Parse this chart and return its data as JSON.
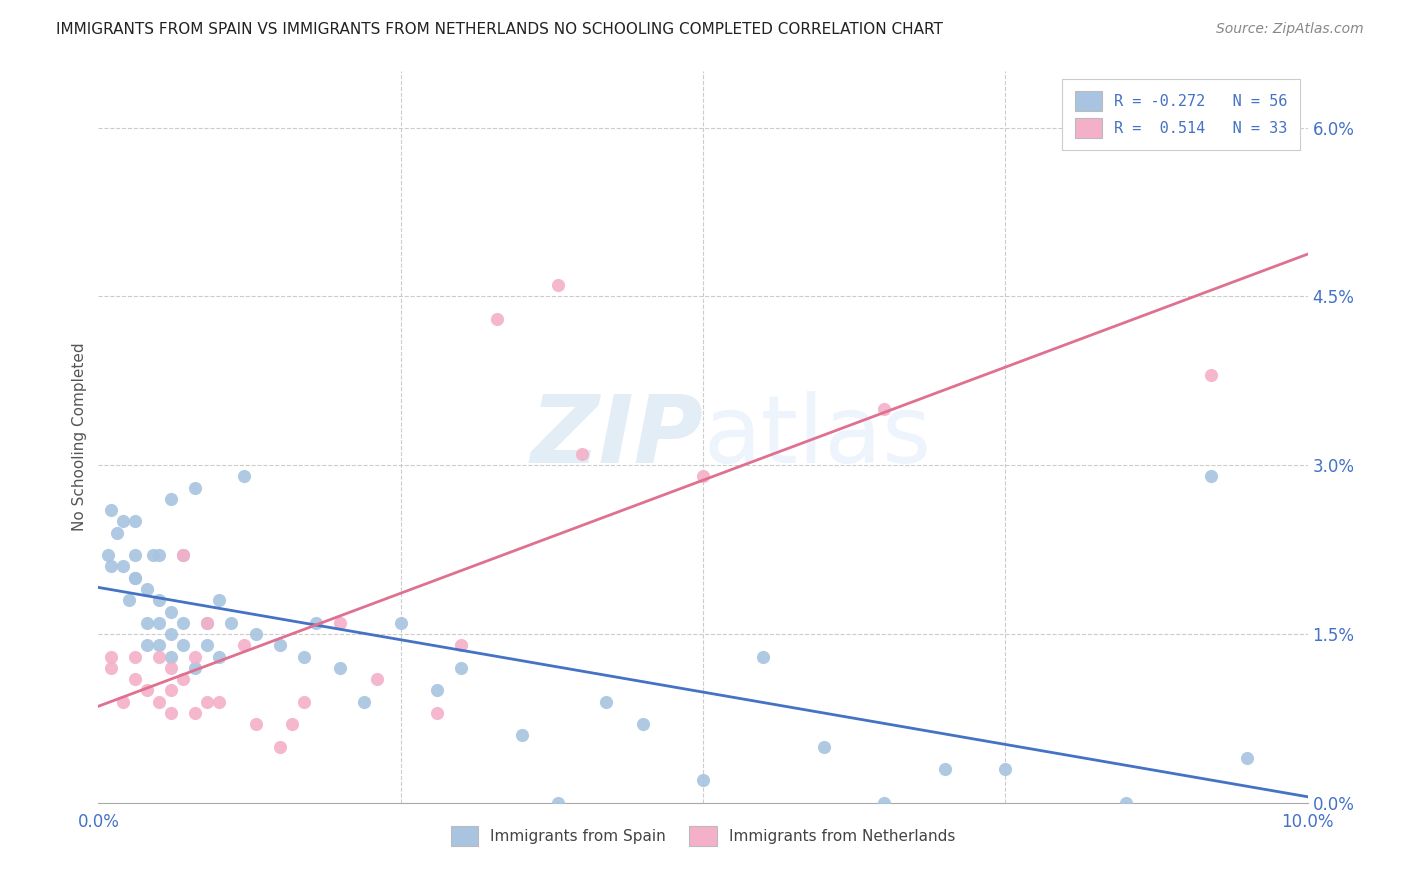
{
  "title": "IMMIGRANTS FROM SPAIN VS IMMIGRANTS FROM NETHERLANDS NO SCHOOLING COMPLETED CORRELATION CHART",
  "source": "Source: ZipAtlas.com",
  "ylabel": "No Schooling Completed",
  "right_yticks_labels": [
    "0.0%",
    "1.5%",
    "3.0%",
    "4.5%",
    "6.0%"
  ],
  "right_ytick_vals": [
    0.0,
    0.015,
    0.03,
    0.045,
    0.06
  ],
  "xlim": [
    0.0,
    0.1
  ],
  "ylim": [
    0.0,
    0.065
  ],
  "x_tick_labels": [
    "0.0%",
    "10.0%"
  ],
  "x_tick_vals": [
    0.0,
    0.1
  ],
  "legend_r1": "R = -0.272",
  "legend_n1": "N = 56",
  "legend_r2": "R =  0.514",
  "legend_n2": "N = 33",
  "legend_color1": "#a8c4e0",
  "legend_color2": "#f4b0c8",
  "scatter_color_spain": "#a8c4e0",
  "scatter_color_netherlands": "#f4b0c8",
  "line_color_spain": "#4472c4",
  "line_color_netherlands": "#e07090",
  "watermark_zip": "ZIP",
  "watermark_atlas": "atlas",
  "bottom_legend1": "Immigrants from Spain",
  "bottom_legend2": "Immigrants from Netherlands",
  "spain_x": [
    0.0008,
    0.001,
    0.001,
    0.0015,
    0.002,
    0.002,
    0.0025,
    0.003,
    0.003,
    0.003,
    0.003,
    0.004,
    0.004,
    0.004,
    0.0045,
    0.005,
    0.005,
    0.005,
    0.005,
    0.006,
    0.006,
    0.006,
    0.006,
    0.007,
    0.007,
    0.007,
    0.008,
    0.008,
    0.009,
    0.009,
    0.01,
    0.01,
    0.011,
    0.012,
    0.013,
    0.015,
    0.017,
    0.018,
    0.02,
    0.022,
    0.025,
    0.028,
    0.03,
    0.035,
    0.038,
    0.042,
    0.045,
    0.05,
    0.055,
    0.06,
    0.065,
    0.07,
    0.075,
    0.085,
    0.092,
    0.095
  ],
  "spain_y": [
    0.022,
    0.026,
    0.021,
    0.024,
    0.021,
    0.025,
    0.018,
    0.02,
    0.022,
    0.02,
    0.025,
    0.014,
    0.016,
    0.019,
    0.022,
    0.014,
    0.016,
    0.018,
    0.022,
    0.013,
    0.015,
    0.017,
    0.027,
    0.014,
    0.016,
    0.022,
    0.012,
    0.028,
    0.014,
    0.016,
    0.013,
    0.018,
    0.016,
    0.029,
    0.015,
    0.014,
    0.013,
    0.016,
    0.012,
    0.009,
    0.016,
    0.01,
    0.012,
    0.006,
    0.0,
    0.009,
    0.007,
    0.002,
    0.013,
    0.005,
    0.0,
    0.003,
    0.003,
    0.0,
    0.029,
    0.004
  ],
  "netherlands_x": [
    0.001,
    0.001,
    0.002,
    0.003,
    0.003,
    0.004,
    0.005,
    0.005,
    0.006,
    0.006,
    0.006,
    0.007,
    0.007,
    0.008,
    0.008,
    0.009,
    0.009,
    0.01,
    0.012,
    0.013,
    0.015,
    0.016,
    0.017,
    0.02,
    0.023,
    0.028,
    0.03,
    0.033,
    0.038,
    0.04,
    0.05,
    0.065,
    0.092
  ],
  "netherlands_y": [
    0.012,
    0.013,
    0.009,
    0.011,
    0.013,
    0.01,
    0.009,
    0.013,
    0.008,
    0.01,
    0.012,
    0.011,
    0.022,
    0.008,
    0.013,
    0.009,
    0.016,
    0.009,
    0.014,
    0.007,
    0.005,
    0.007,
    0.009,
    0.016,
    0.011,
    0.008,
    0.014,
    0.043,
    0.046,
    0.031,
    0.029,
    0.035,
    0.038
  ]
}
